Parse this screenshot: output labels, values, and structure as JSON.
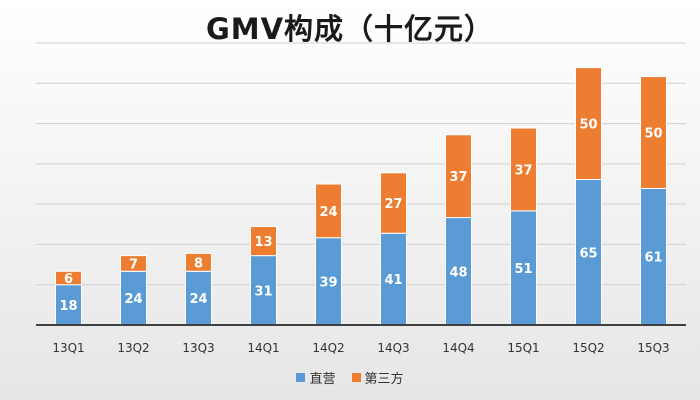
{
  "chart_data": {
    "type": "bar",
    "stacked": true,
    "title": "GMV构成（十亿元）",
    "categories": [
      "13Q1",
      "13Q2",
      "13Q3",
      "14Q1",
      "14Q2",
      "14Q3",
      "14Q4",
      "15Q1",
      "15Q2",
      "15Q3"
    ],
    "series": [
      {
        "name": "直营",
        "color": "#5b9bd5",
        "values": [
          18,
          24,
          24,
          31,
          39,
          41,
          48,
          51,
          65,
          61
        ]
      },
      {
        "name": "第三方",
        "color": "#ed7d31",
        "values": [
          6,
          7,
          8,
          13,
          24,
          27,
          37,
          37,
          50,
          50
        ]
      }
    ],
    "ylim": [
      0,
      126
    ],
    "grid": true,
    "legend_position": "bottom",
    "data_labels": true
  }
}
